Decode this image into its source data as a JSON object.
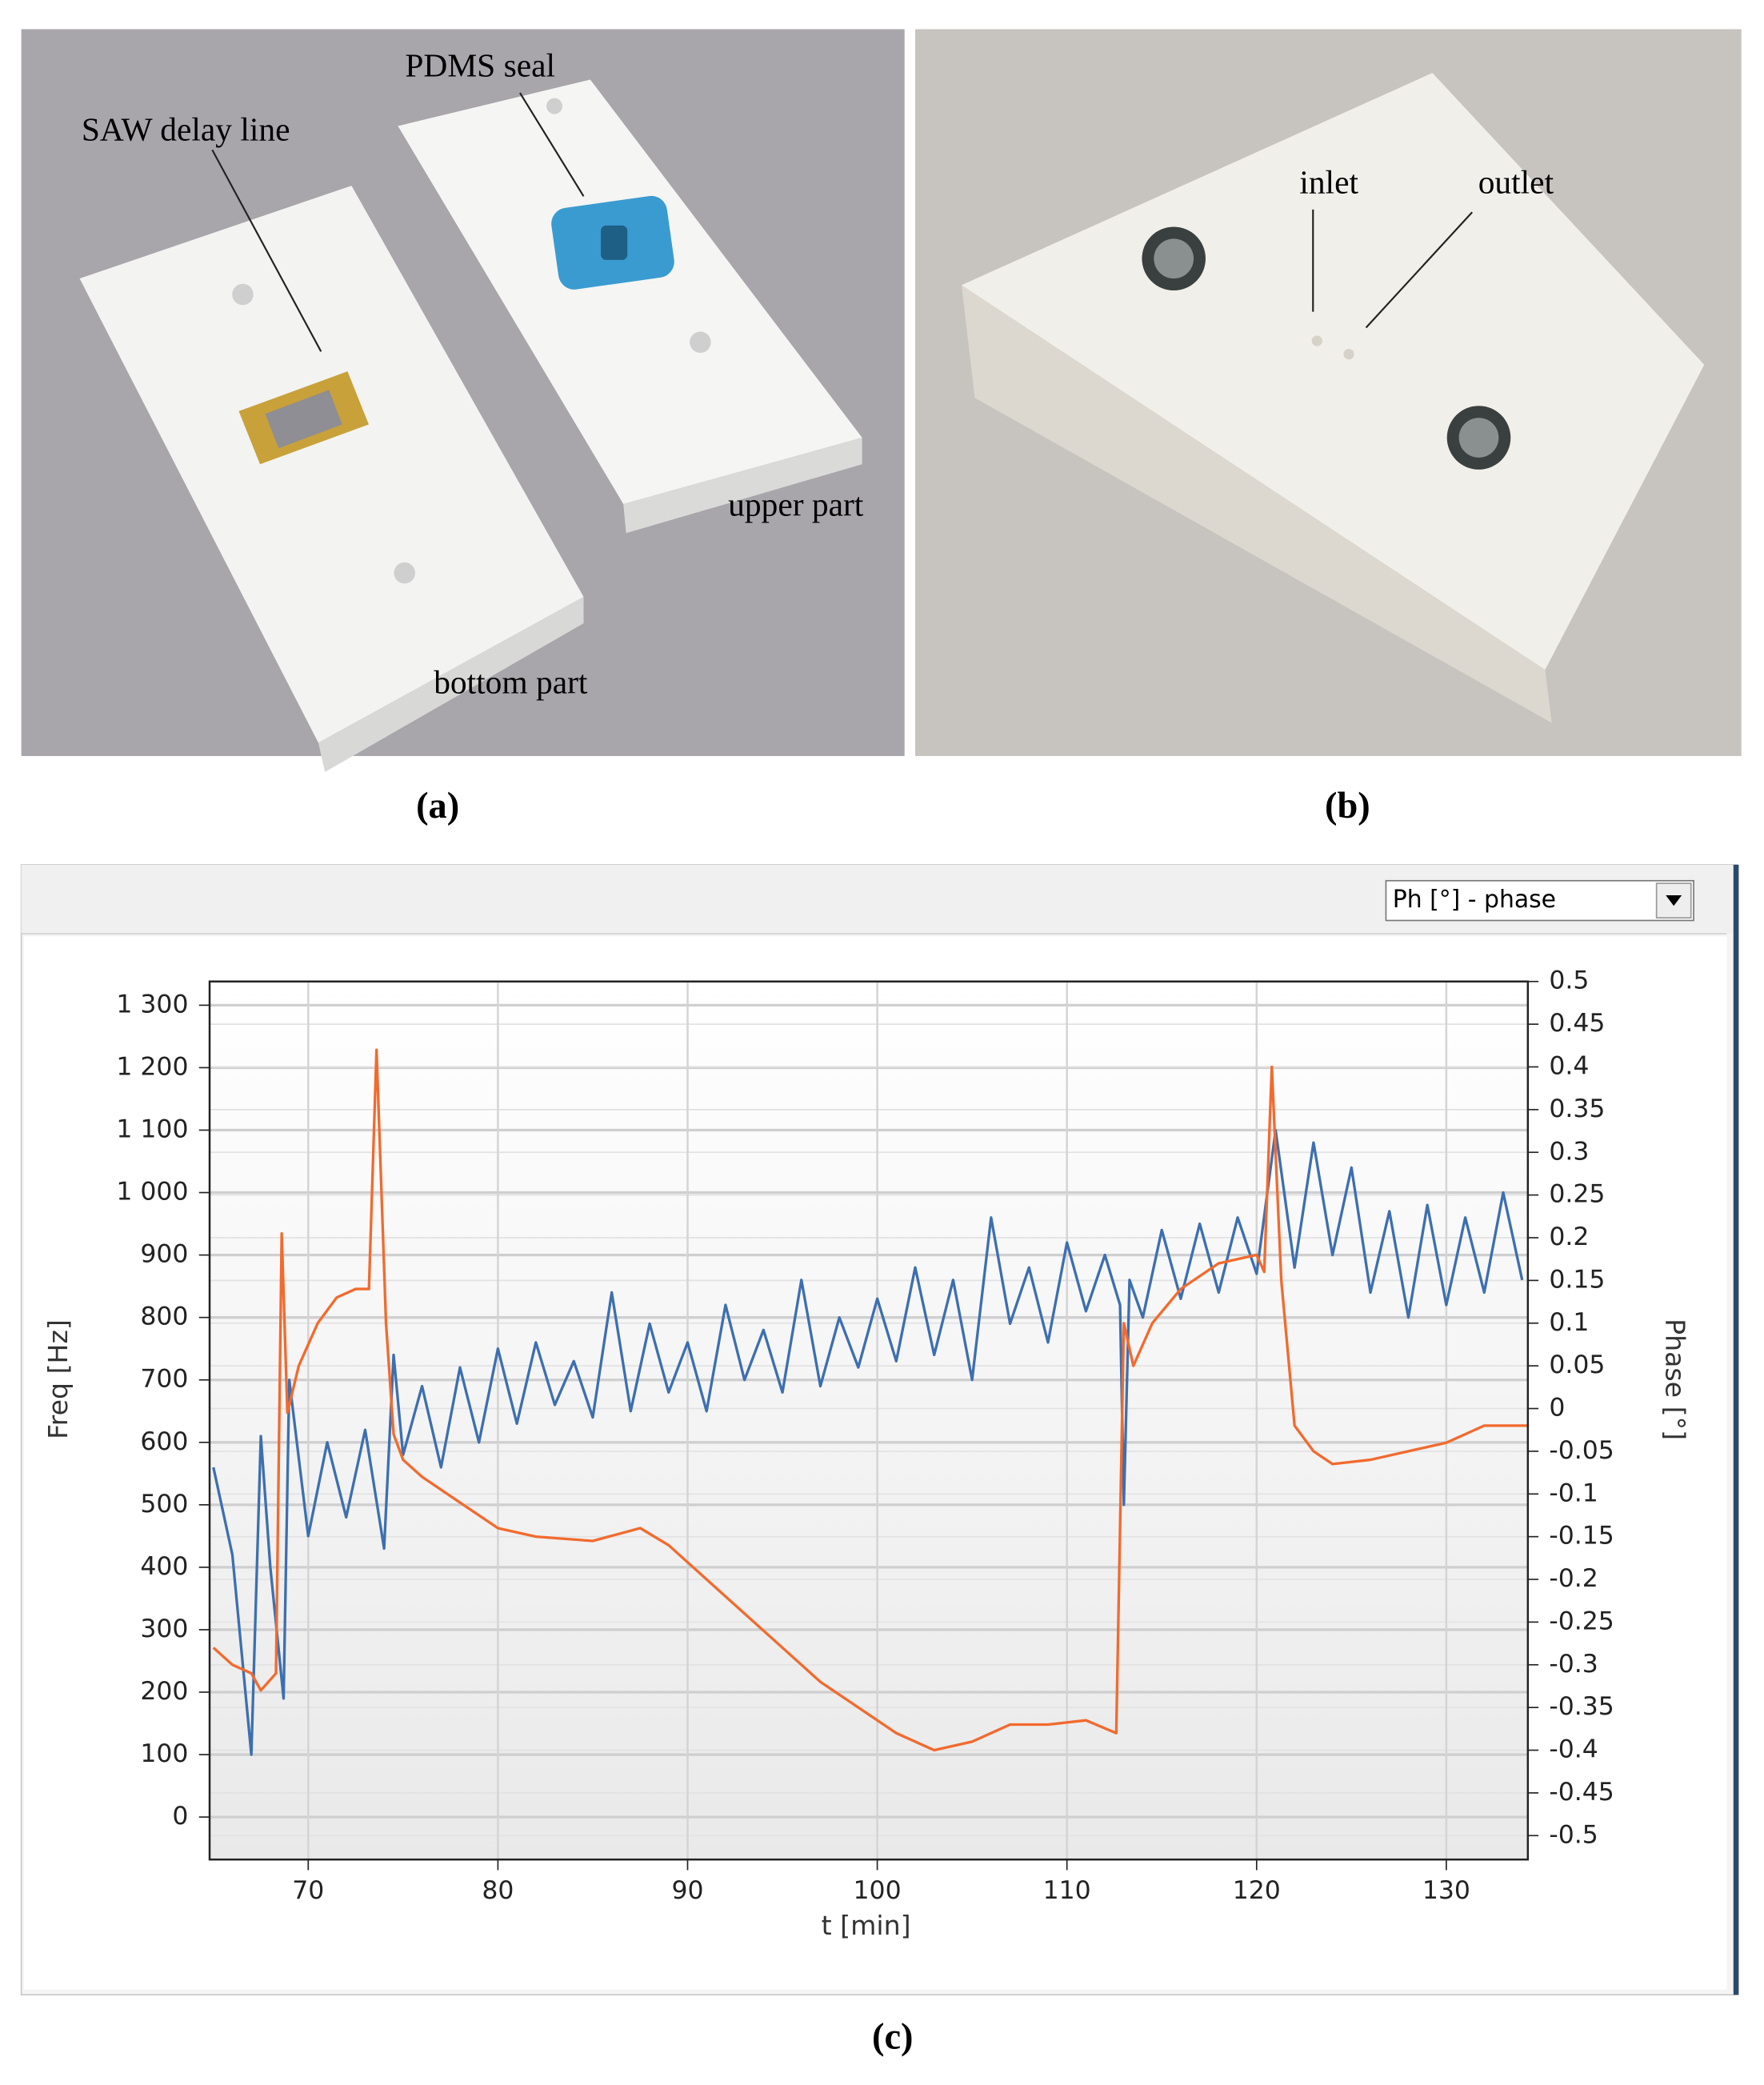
{
  "panels": [
    {
      "caption": "(a)",
      "annotations": [
        "SAW delay line",
        "PDMS seal",
        "upper part",
        "bottom part"
      ]
    },
    {
      "caption": "(b)",
      "annotations": [
        "inlet",
        "outlet"
      ]
    },
    {
      "caption": "(c)",
      "dropdown": "Ph [°] - phase"
    }
  ],
  "chart_data": {
    "type": "line",
    "xlabel": "t [min]",
    "ylabel": "Freq [Hz]",
    "y2label": "Phase [°]",
    "xlim": [
      64.8,
      134.3
    ],
    "xticks": [
      70,
      80,
      90,
      100,
      110,
      120,
      130
    ],
    "ylim": [
      -68,
      1338
    ],
    "yticks": [
      0,
      100,
      200,
      300,
      400,
      500,
      600,
      700,
      800,
      900,
      {
        "value": 1000,
        "label": "1 000"
      },
      {
        "value": 1100,
        "label": "1 100"
      },
      {
        "value": 1200,
        "label": "1 200"
      },
      {
        "value": 1300,
        "label": "1 300"
      }
    ],
    "y2lim": [
      -0.528,
      0.5
    ],
    "y2ticks": [
      -0.5,
      -0.45,
      -0.4,
      -0.35,
      -0.3,
      -0.25,
      -0.2,
      -0.15,
      -0.1,
      -0.05,
      0,
      0.05,
      0.1,
      0.15,
      0.2,
      0.25,
      0.3,
      0.35,
      0.4,
      0.45,
      0.5
    ],
    "grid": true,
    "series": [
      {
        "color": "#3d6fb0",
        "x": [
          65,
          66,
          67,
          67.5,
          68,
          68.7,
          69,
          70,
          71,
          72,
          73,
          74,
          74.5,
          75,
          76,
          77,
          78,
          79,
          80,
          81,
          82,
          83,
          84,
          85,
          86,
          87,
          88,
          89,
          90,
          91,
          92,
          93,
          94,
          95,
          96,
          97,
          98,
          99,
          100,
          101,
          102,
          103,
          104,
          105,
          106,
          107,
          108,
          109,
          110,
          111,
          112,
          112.8,
          113,
          113.3,
          114,
          115,
          116,
          117,
          118,
          119,
          120,
          121,
          122,
          123,
          124,
          125,
          126,
          127,
          128,
          129,
          130,
          131,
          132,
          133,
          134
        ],
        "values": [
          560,
          420,
          100,
          610,
          400,
          190,
          700,
          450,
          600,
          480,
          620,
          430,
          740,
          580,
          690,
          560,
          720,
          600,
          750,
          630,
          760,
          660,
          730,
          640,
          840,
          650,
          790,
          680,
          760,
          650,
          820,
          700,
          780,
          680,
          860,
          690,
          800,
          720,
          830,
          730,
          880,
          740,
          860,
          700,
          960,
          790,
          880,
          760,
          920,
          810,
          900,
          820,
          500,
          860,
          800,
          940,
          830,
          950,
          840,
          960,
          870,
          1100,
          880,
          1080,
          900,
          1040,
          840,
          970,
          800,
          980,
          820,
          960,
          840,
          1000,
          860
        ]
      },
      {
        "color": "#f26a2e",
        "axis": "y2",
        "x": [
          65,
          66,
          67,
          67.5,
          68.3,
          68.6,
          68.9,
          69.5,
          70.5,
          71.5,
          72.5,
          73.2,
          73.6,
          74.1,
          74.5,
          75,
          76,
          78,
          80,
          82,
          85,
          87.5,
          89,
          91,
          93,
          95,
          97,
          99,
          101,
          103,
          105,
          107,
          109,
          111,
          112.6,
          113,
          113.5,
          114.5,
          116,
          118,
          120,
          120.4,
          120.8,
          121.3,
          122,
          123,
          124,
          126,
          128,
          130,
          132,
          134.3
        ],
        "values": [
          -0.28,
          -0.3,
          -0.31,
          -0.33,
          -0.31,
          0.205,
          -0.005,
          0.05,
          0.1,
          0.13,
          0.14,
          0.14,
          0.42,
          0.1,
          -0.03,
          -0.06,
          -0.08,
          -0.11,
          -0.14,
          -0.15,
          -0.155,
          -0.14,
          -0.16,
          -0.2,
          -0.24,
          -0.28,
          -0.32,
          -0.35,
          -0.38,
          -0.4,
          -0.39,
          -0.37,
          -0.37,
          -0.365,
          -0.38,
          0.1,
          0.05,
          0.1,
          0.14,
          0.17,
          0.18,
          0.16,
          0.4,
          0.15,
          -0.02,
          -0.05,
          -0.065,
          -0.06,
          -0.05,
          -0.04,
          -0.02,
          -0.02
        ]
      }
    ]
  }
}
